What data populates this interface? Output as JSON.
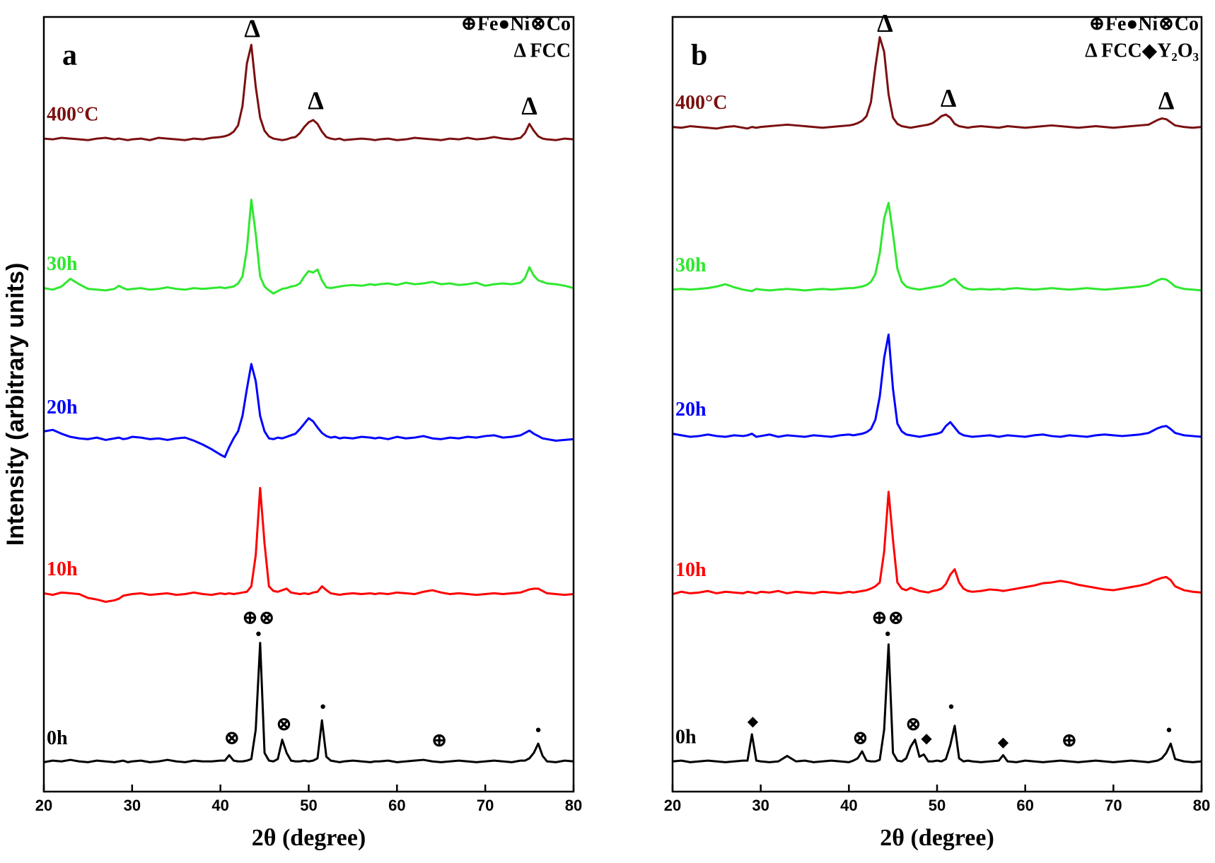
{
  "chart_data": [
    {
      "type": "line",
      "panel_label": "a",
      "x_label": "2θ (degree)",
      "y_label": "Intensity (arbitrary units)",
      "legend_text": [
        "⊕Fe●Ni⊗Co",
        "Δ FCC"
      ],
      "annotations": [
        "Δ",
        "Δ",
        "Δ",
        "⊕⊗",
        "●",
        "⊗",
        "⊗",
        "●",
        "⊕",
        "●"
      ],
      "xlim": [
        20,
        80
      ],
      "xticks": [
        20,
        30,
        40,
        50,
        60,
        70,
        80
      ],
      "ylim": [
        0,
        100
      ],
      "x": [
        20,
        21,
        22,
        23,
        24,
        25,
        26,
        27,
        28,
        28.5,
        29,
        29.5,
        30,
        31,
        32,
        33,
        34,
        35,
        36,
        37,
        38,
        39,
        40,
        40.5,
        41,
        41.5,
        42,
        42.5,
        43,
        43.5,
        44,
        44.5,
        45,
        45.5,
        46,
        46.5,
        47,
        47.5,
        48,
        48.5,
        49,
        49.5,
        50,
        50.5,
        51,
        51.5,
        52,
        52.5,
        53,
        53.5,
        54,
        55,
        56,
        57,
        57.5,
        58,
        59,
        60,
        61,
        62,
        63,
        64,
        65,
        66,
        67,
        68,
        69,
        70,
        71,
        72,
        73,
        74,
        74.5,
        75,
        75.5,
        76,
        76.5,
        77,
        78,
        79,
        80
      ],
      "series": [
        {
          "name": "0h",
          "color": "#000000",
          "values": [
            3.8,
            4.0,
            3.9,
            4.1,
            3.9,
            3.8,
            4.0,
            3.9,
            3.8,
            3.9,
            4.0,
            3.8,
            3.9,
            4.0,
            3.8,
            3.9,
            4.1,
            3.9,
            3.8,
            4.0,
            3.9,
            3.9,
            4.0,
            4.0,
            4.7,
            4.0,
            3.9,
            3.9,
            4.0,
            4.2,
            8.0,
            19.2,
            5.0,
            4.0,
            3.9,
            4.2,
            6.7,
            5.0,
            4.0,
            3.9,
            3.9,
            4.0,
            3.9,
            4.0,
            4.3,
            9.2,
            4.5,
            4.0,
            3.9,
            3.8,
            3.9,
            4.0,
            3.9,
            3.8,
            3.9,
            3.9,
            4.0,
            3.8,
            3.9,
            4.0,
            4.1,
            3.9,
            3.8,
            3.9,
            4.0,
            3.9,
            3.8,
            3.9,
            4.0,
            3.9,
            3.8,
            4.0,
            4.0,
            4.3,
            5.0,
            6.2,
            4.6,
            3.9,
            3.8,
            4.0,
            3.9
          ]
        },
        {
          "name": "10h",
          "color": "#ff0000",
          "values": [
            25.6,
            25.4,
            25.7,
            25.6,
            25.5,
            25.0,
            24.8,
            24.5,
            24.7,
            24.9,
            25.3,
            25.4,
            25.5,
            25.6,
            25.4,
            25.5,
            25.6,
            25.4,
            25.5,
            25.7,
            25.5,
            25.4,
            25.6,
            25.5,
            25.6,
            25.5,
            25.6,
            25.7,
            25.8,
            26.5,
            30.5,
            39.2,
            32.0,
            26.5,
            25.9,
            25.8,
            26.0,
            26.2,
            25.7,
            25.6,
            25.5,
            25.6,
            25.5,
            25.7,
            25.8,
            26.5,
            26.0,
            25.6,
            25.5,
            25.4,
            25.5,
            25.6,
            25.5,
            25.6,
            25.5,
            25.6,
            25.5,
            25.7,
            25.6,
            25.5,
            25.8,
            26.0,
            25.7,
            25.5,
            25.6,
            25.5,
            25.4,
            25.5,
            25.6,
            25.5,
            25.6,
            25.7,
            25.9,
            26.1,
            26.2,
            26.2,
            25.9,
            25.6,
            25.5,
            25.4,
            25.5
          ]
        },
        {
          "name": "20h",
          "color": "#0000ff",
          "values": [
            46.5,
            46.7,
            46.2,
            45.8,
            45.6,
            45.5,
            45.7,
            45.4,
            45.6,
            45.7,
            45.5,
            45.6,
            45.8,
            45.7,
            45.5,
            45.6,
            45.4,
            45.6,
            45.7,
            45.3,
            44.8,
            44.2,
            43.5,
            43.2,
            44.5,
            45.6,
            46.5,
            48.5,
            52.0,
            55.2,
            53.0,
            48.5,
            46.5,
            45.6,
            45.5,
            45.7,
            45.6,
            45.8,
            46.0,
            46.2,
            46.8,
            47.5,
            48.2,
            47.8,
            47.0,
            46.3,
            45.9,
            45.7,
            45.8,
            45.6,
            45.7,
            45.6,
            45.8,
            45.7,
            45.6,
            45.7,
            45.5,
            45.8,
            45.6,
            45.7,
            45.9,
            45.6,
            45.5,
            45.7,
            45.6,
            45.8,
            45.7,
            45.9,
            46.0,
            45.7,
            45.8,
            46.0,
            46.3,
            46.6,
            46.2,
            45.9,
            45.6,
            45.5,
            45.3,
            45.4,
            45.5
          ]
        },
        {
          "name": "30h",
          "color": "#2fe82f",
          "values": [
            65.0,
            64.8,
            65.2,
            66.2,
            65.5,
            64.9,
            64.8,
            64.7,
            64.9,
            65.3,
            65.0,
            64.8,
            64.9,
            65.0,
            64.8,
            64.9,
            65.1,
            64.9,
            64.8,
            65.0,
            64.9,
            65.0,
            65.1,
            65.0,
            65.1,
            65.2,
            65.6,
            66.5,
            70.0,
            76.4,
            72.0,
            66.5,
            65.2,
            64.7,
            64.3,
            64.6,
            64.9,
            65.0,
            65.2,
            65.3,
            65.6,
            66.5,
            67.2,
            67.0,
            67.4,
            66.0,
            65.1,
            65.0,
            65.1,
            65.2,
            65.3,
            65.4,
            65.3,
            65.5,
            65.4,
            65.5,
            65.6,
            65.4,
            65.7,
            65.5,
            65.6,
            65.8,
            65.5,
            65.6,
            65.4,
            65.5,
            65.7,
            65.3,
            65.5,
            65.6,
            65.5,
            65.7,
            66.3,
            67.7,
            66.6,
            66.0,
            65.8,
            65.6,
            65.5,
            65.3,
            65.0
          ]
        },
        {
          "name": "400°C",
          "color": "#7b1010",
          "values": [
            84.3,
            84.2,
            84.4,
            84.3,
            84.2,
            84.1,
            84.3,
            84.4,
            84.2,
            84.3,
            84.2,
            84.1,
            84.2,
            84.3,
            84.1,
            84.4,
            84.3,
            84.2,
            84.1,
            84.3,
            84.2,
            84.4,
            84.5,
            84.6,
            84.8,
            85.2,
            86.0,
            88.5,
            94.0,
            96.4,
            91.0,
            87.0,
            85.3,
            84.6,
            84.3,
            84.2,
            84.1,
            84.2,
            84.4,
            84.5,
            85.0,
            85.8,
            86.4,
            86.7,
            86.2,
            85.2,
            84.5,
            84.3,
            84.2,
            84.3,
            84.1,
            84.2,
            84.3,
            84.2,
            84.1,
            84.2,
            84.3,
            84.1,
            84.2,
            84.4,
            84.3,
            84.2,
            84.1,
            84.3,
            84.2,
            84.4,
            84.2,
            84.3,
            84.5,
            84.3,
            84.2,
            84.4,
            85.0,
            86.2,
            85.3,
            84.6,
            84.3,
            84.2,
            84.1,
            84.3,
            84.2
          ]
        }
      ]
    },
    {
      "type": "line",
      "panel_label": "b",
      "x_label": "2θ (degree)",
      "legend_text": [
        "⊕Fe●Ni⊗Co",
        "Δ FCC◆Y₂O₃"
      ],
      "annotations": [
        "Δ",
        "Δ",
        "Δ",
        "⊕⊗",
        "●",
        "◆",
        "⊗",
        "⊗",
        "◆",
        "●",
        "◆",
        "⊕",
        "●"
      ],
      "xlim": [
        20,
        80
      ],
      "xticks": [
        20,
        30,
        40,
        50,
        60,
        70,
        80
      ],
      "ylim": [
        0,
        100
      ],
      "x": [
        20,
        21,
        22,
        23,
        24,
        25,
        26,
        27,
        28,
        28.5,
        29,
        29.5,
        30,
        31,
        32,
        33,
        34,
        35,
        36,
        37,
        38,
        39,
        40,
        40.5,
        41,
        41.5,
        42,
        42.5,
        43,
        43.5,
        44,
        44.5,
        45,
        45.5,
        46,
        46.5,
        47,
        47.5,
        48,
        48.5,
        49,
        49.5,
        50,
        50.5,
        51,
        51.5,
        52,
        52.5,
        53,
        53.5,
        54,
        55,
        56,
        57,
        57.5,
        58,
        59,
        60,
        61,
        62,
        63,
        64,
        65,
        66,
        67,
        68,
        69,
        70,
        71,
        72,
        73,
        74,
        74.5,
        75,
        75.5,
        76,
        76.5,
        77,
        78,
        79,
        80
      ],
      "series": [
        {
          "name": "0h",
          "color": "#000000",
          "values": [
            3.9,
            4.0,
            3.8,
            3.9,
            4.0,
            3.9,
            3.8,
            3.9,
            4.0,
            4.0,
            7.4,
            4.0,
            3.9,
            3.8,
            3.9,
            4.6,
            3.9,
            4.0,
            3.8,
            3.9,
            4.0,
            3.9,
            3.8,
            4.0,
            4.3,
            5.2,
            4.0,
            3.9,
            3.9,
            4.1,
            8.0,
            19.0,
            5.0,
            4.0,
            3.9,
            4.3,
            5.8,
            6.7,
            4.5,
            4.8,
            3.9,
            3.9,
            4.0,
            3.9,
            4.2,
            6.0,
            8.5,
            4.3,
            3.9,
            4.0,
            3.9,
            3.8,
            3.9,
            4.0,
            4.7,
            3.9,
            3.8,
            4.0,
            3.9,
            3.8,
            3.9,
            4.0,
            3.9,
            3.8,
            3.9,
            4.0,
            3.9,
            3.8,
            3.9,
            4.0,
            3.9,
            3.8,
            3.9,
            4.0,
            4.3,
            5.0,
            6.2,
            4.2,
            3.9,
            3.8,
            3.9
          ]
        },
        {
          "name": "10h",
          "color": "#ff0000",
          "values": [
            25.5,
            25.8,
            25.6,
            25.7,
            25.9,
            25.6,
            25.8,
            25.7,
            25.6,
            25.8,
            25.7,
            25.6,
            25.8,
            25.7,
            25.9,
            25.6,
            25.8,
            25.7,
            25.6,
            25.8,
            25.7,
            25.6,
            25.8,
            25.7,
            25.8,
            25.9,
            26.0,
            26.2,
            26.5,
            27.0,
            31.0,
            38.7,
            32.5,
            27.0,
            26.2,
            26.0,
            26.3,
            26.1,
            25.9,
            25.8,
            25.7,
            25.9,
            26.0,
            26.2,
            26.8,
            28.0,
            28.7,
            27.0,
            26.2,
            25.9,
            25.8,
            25.9,
            26.1,
            26.0,
            25.9,
            26.0,
            26.2,
            26.4,
            26.6,
            26.9,
            27.0,
            27.2,
            27.0,
            26.7,
            26.5,
            26.3,
            26.1,
            26.0,
            26.2,
            26.4,
            26.6,
            26.9,
            27.2,
            27.4,
            27.6,
            27.7,
            27.3,
            26.5,
            26.0,
            25.8,
            25.7
          ]
        },
        {
          "name": "20h",
          "color": "#0000ff",
          "values": [
            46.2,
            46.0,
            45.8,
            45.9,
            46.1,
            45.9,
            45.8,
            46.0,
            45.9,
            46.0,
            46.2,
            45.8,
            45.9,
            46.1,
            45.8,
            46.0,
            45.9,
            45.8,
            46.0,
            45.9,
            45.8,
            46.0,
            46.1,
            46.0,
            46.1,
            46.2,
            46.4,
            46.8,
            48.0,
            51.0,
            56.0,
            59.0,
            52.0,
            47.5,
            46.5,
            46.1,
            46.0,
            45.9,
            45.8,
            45.9,
            46.0,
            46.1,
            46.2,
            46.4,
            47.2,
            47.7,
            47.0,
            46.3,
            46.0,
            45.9,
            45.8,
            45.9,
            46.0,
            45.8,
            45.9,
            46.0,
            45.9,
            45.8,
            46.0,
            46.1,
            45.9,
            45.8,
            46.0,
            45.9,
            45.8,
            46.0,
            46.1,
            46.0,
            45.9,
            46.0,
            46.1,
            46.3,
            46.6,
            46.9,
            47.1,
            47.2,
            46.8,
            46.3,
            46.0,
            45.9,
            45.8
          ]
        },
        {
          "name": "30h",
          "color": "#2fe82f",
          "values": [
            64.8,
            64.9,
            64.8,
            64.9,
            65.0,
            65.2,
            65.5,
            65.1,
            64.8,
            64.7,
            64.6,
            64.9,
            64.8,
            64.7,
            64.8,
            64.9,
            64.8,
            64.7,
            64.8,
            64.9,
            64.8,
            64.9,
            65.0,
            65.0,
            65.1,
            65.2,
            65.4,
            65.8,
            66.8,
            69.5,
            74.0,
            76.0,
            72.0,
            67.5,
            65.8,
            65.2,
            65.0,
            64.9,
            64.8,
            64.9,
            65.0,
            65.1,
            65.2,
            65.3,
            65.6,
            66.0,
            66.2,
            65.6,
            65.1,
            64.9,
            64.8,
            64.9,
            64.8,
            64.9,
            64.8,
            64.9,
            65.0,
            64.9,
            64.8,
            64.9,
            65.0,
            64.9,
            64.8,
            64.9,
            65.0,
            64.9,
            64.8,
            64.9,
            65.0,
            65.1,
            65.2,
            65.4,
            65.7,
            66.0,
            66.2,
            66.1,
            65.7,
            65.2,
            64.9,
            64.8,
            64.7
          ]
        },
        {
          "name": "400°C",
          "color": "#7b1010",
          "values": [
            85.8,
            85.7,
            85.9,
            85.8,
            85.7,
            85.6,
            85.8,
            85.9,
            85.7,
            85.6,
            85.8,
            85.7,
            85.8,
            85.9,
            86.0,
            86.1,
            86.0,
            85.9,
            85.8,
            85.7,
            85.8,
            85.9,
            86.0,
            86.1,
            86.3,
            86.6,
            87.2,
            89.0,
            93.5,
            97.4,
            95.5,
            90.0,
            87.0,
            86.2,
            85.9,
            85.8,
            85.7,
            85.8,
            85.9,
            86.0,
            86.1,
            86.3,
            86.7,
            87.2,
            87.4,
            87.0,
            86.2,
            85.9,
            85.8,
            85.7,
            85.8,
            85.9,
            85.8,
            85.7,
            85.8,
            85.9,
            85.8,
            85.7,
            85.8,
            85.9,
            86.0,
            85.9,
            85.8,
            85.7,
            85.8,
            85.9,
            85.8,
            85.7,
            85.8,
            85.9,
            86.0,
            86.1,
            86.4,
            86.7,
            86.9,
            86.8,
            86.4,
            86.0,
            85.8,
            85.7,
            85.8
          ]
        }
      ]
    }
  ]
}
